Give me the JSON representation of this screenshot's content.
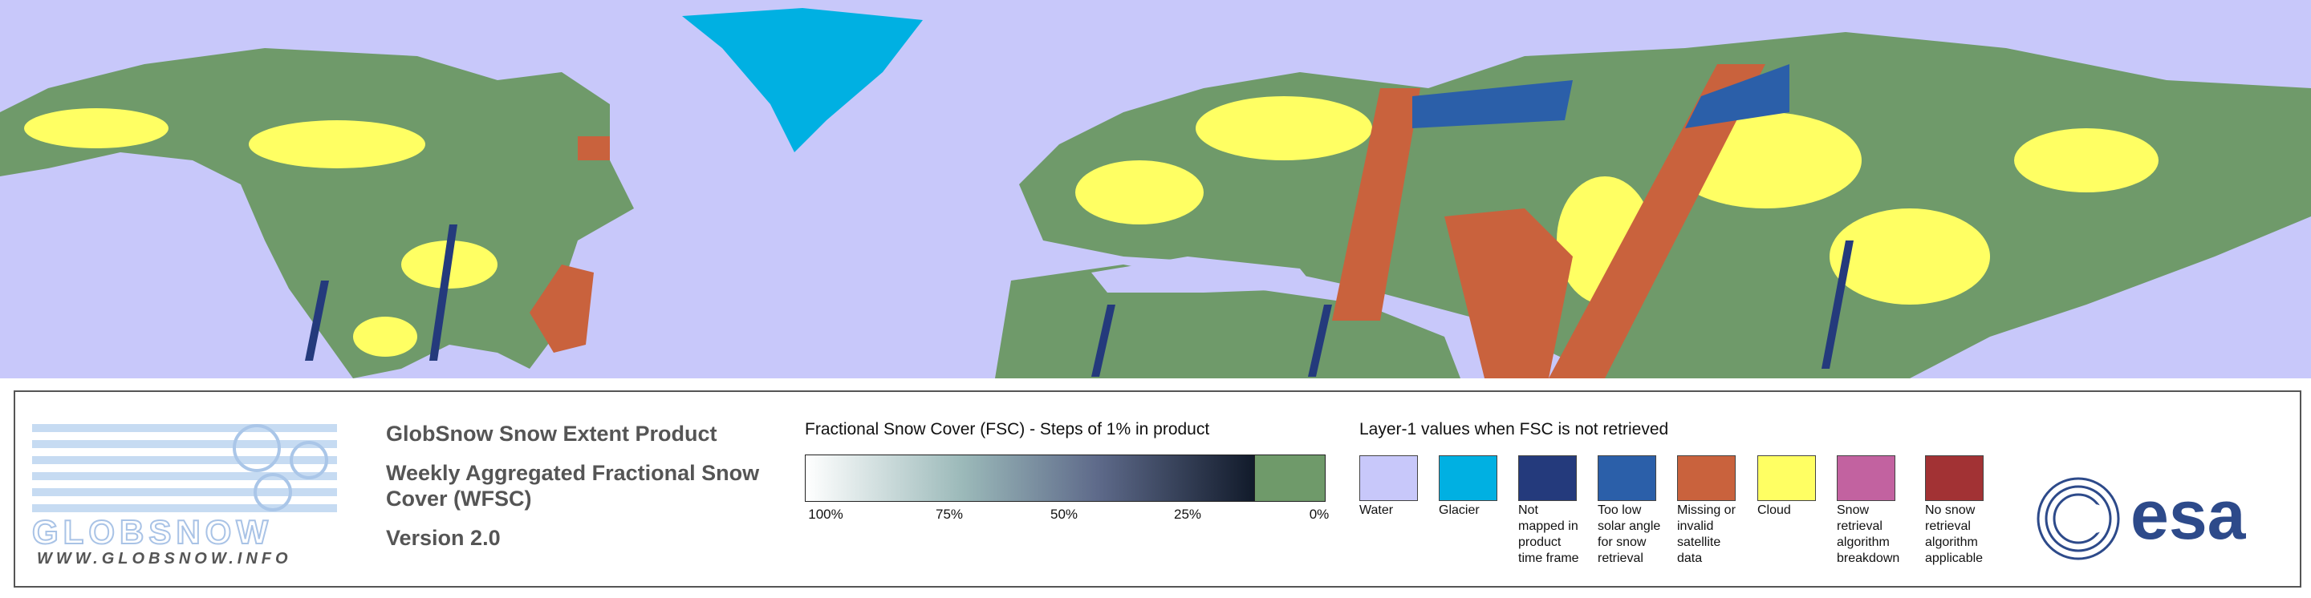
{
  "logo": {
    "name": "GLOBSNOW",
    "url": "WWW.GLOBSNOW.INFO"
  },
  "product": {
    "title": "GlobSnow Snow Extent Product",
    "subtitle": "Weekly Aggregated Fractional Snow Cover (WFSC)",
    "version": "Version 2.0"
  },
  "fsc_legend": {
    "title": "Fractional Snow Cover (FSC) - Steps of 1% in product",
    "labels": [
      "100%",
      "75%",
      "50%",
      "25%",
      "0%"
    ]
  },
  "layer1_legend": {
    "title": "Layer-1 values when FSC is not retrieved",
    "items": [
      {
        "label": "Water",
        "color": "#c8c8fa"
      },
      {
        "label": "Glacier",
        "color": "#00b0e2"
      },
      {
        "label": "Not mapped in product time frame",
        "color": "#243a7c"
      },
      {
        "label": "Too low solar angle for snow retrieval",
        "color": "#2b5fa9"
      },
      {
        "label": "Missing or invalid satellite data",
        "color": "#c9623d"
      },
      {
        "label": "Cloud",
        "color": "#ffff63"
      },
      {
        "label": "Snow retrieval algorithm breakdown",
        "color": "#c262a0"
      },
      {
        "label": "No snow retrieval algorithm applicable",
        "color": "#a23234"
      }
    ]
  },
  "agency": {
    "name": "esa"
  }
}
